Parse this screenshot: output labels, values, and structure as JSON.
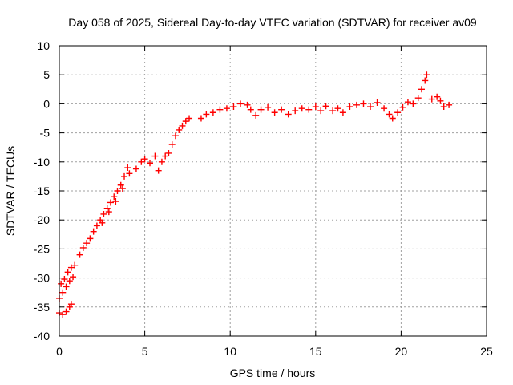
{
  "chart_data": {
    "type": "scatter",
    "title": "Day 058 of 2025, Sidereal Day-to-day VTEC variation (SDTVAR) for receiver av09",
    "xlabel": "GPS time / hours",
    "ylabel": "SDTVAR / TECUs",
    "xlim": [
      0,
      25
    ],
    "ylim": [
      -40,
      10
    ],
    "xticks": [
      0,
      5,
      10,
      15,
      20,
      25
    ],
    "yticks": [
      10,
      5,
      0,
      -5,
      -10,
      -15,
      -20,
      -25,
      -30,
      -35,
      -40
    ],
    "xtick_labels": [
      "0",
      "5",
      "10",
      "15",
      "20",
      "25"
    ],
    "ytick_labels": [
      "10",
      "5",
      "0",
      "-5",
      "-10",
      "-15",
      "-20",
      "-25",
      "-30",
      "-35",
      "-40"
    ],
    "grid": true,
    "marker": "+",
    "series": [
      {
        "name": "SDTVAR",
        "color": "#ff0000",
        "points": [
          [
            0.0,
            -36.0
          ],
          [
            0.2,
            -36.3
          ],
          [
            0.4,
            -35.8
          ],
          [
            0.6,
            -35.0
          ],
          [
            0.7,
            -34.5
          ],
          [
            0.0,
            -33.5
          ],
          [
            0.2,
            -32.5
          ],
          [
            0.4,
            -31.5
          ],
          [
            0.6,
            -30.5
          ],
          [
            0.8,
            -29.8
          ],
          [
            0.1,
            -31.0
          ],
          [
            0.3,
            -30.2
          ],
          [
            0.5,
            -29.0
          ],
          [
            0.7,
            -28.2
          ],
          [
            0.9,
            -27.8
          ],
          [
            1.2,
            -26.0
          ],
          [
            1.4,
            -24.8
          ],
          [
            1.6,
            -24.0
          ],
          [
            1.8,
            -23.2
          ],
          [
            2.0,
            -22.0
          ],
          [
            2.2,
            -21.0
          ],
          [
            2.4,
            -20.0
          ],
          [
            2.6,
            -19.0
          ],
          [
            2.8,
            -18.0
          ],
          [
            3.0,
            -17.0
          ],
          [
            3.2,
            -16.0
          ],
          [
            3.4,
            -15.0
          ],
          [
            3.6,
            -14.0
          ],
          [
            3.8,
            -12.5
          ],
          [
            4.0,
            -11.0
          ],
          [
            2.5,
            -20.5
          ],
          [
            2.9,
            -18.6
          ],
          [
            3.3,
            -16.8
          ],
          [
            3.7,
            -14.6
          ],
          [
            4.1,
            -12.0
          ],
          [
            4.5,
            -11.2
          ],
          [
            4.8,
            -10.0
          ],
          [
            5.0,
            -9.5
          ],
          [
            5.3,
            -10.2
          ],
          [
            5.6,
            -9.0
          ],
          [
            5.8,
            -11.5
          ],
          [
            6.0,
            -10.0
          ],
          [
            6.2,
            -9.0
          ],
          [
            6.4,
            -8.5
          ],
          [
            6.6,
            -7.0
          ],
          [
            6.8,
            -5.5
          ],
          [
            7.0,
            -4.5
          ],
          [
            7.2,
            -3.8
          ],
          [
            7.4,
            -3.0
          ],
          [
            7.6,
            -2.5
          ],
          [
            8.3,
            -2.5
          ],
          [
            8.6,
            -1.8
          ],
          [
            9.0,
            -1.5
          ],
          [
            9.4,
            -1.0
          ],
          [
            9.8,
            -0.8
          ],
          [
            10.2,
            -0.5
          ],
          [
            10.6,
            0.0
          ],
          [
            11.0,
            -0.2
          ],
          [
            11.2,
            -1.0
          ],
          [
            11.5,
            -2.0
          ],
          [
            11.8,
            -1.0
          ],
          [
            12.2,
            -0.6
          ],
          [
            12.6,
            -1.5
          ],
          [
            13.0,
            -1.0
          ],
          [
            13.4,
            -1.8
          ],
          [
            13.8,
            -1.2
          ],
          [
            14.2,
            -0.8
          ],
          [
            14.6,
            -1.0
          ],
          [
            15.0,
            -0.5
          ],
          [
            15.3,
            -1.2
          ],
          [
            15.6,
            -0.4
          ],
          [
            16.0,
            -1.2
          ],
          [
            16.3,
            -0.8
          ],
          [
            16.6,
            -1.5
          ],
          [
            17.0,
            -0.5
          ],
          [
            17.4,
            -0.2
          ],
          [
            17.8,
            0.0
          ],
          [
            18.2,
            -0.5
          ],
          [
            18.6,
            0.2
          ],
          [
            19.0,
            -0.8
          ],
          [
            19.3,
            -1.8
          ],
          [
            19.5,
            -2.5
          ],
          [
            19.8,
            -1.5
          ],
          [
            20.1,
            -0.6
          ],
          [
            20.4,
            0.3
          ],
          [
            20.7,
            0.0
          ],
          [
            21.0,
            1.0
          ],
          [
            21.2,
            2.5
          ],
          [
            21.4,
            4.0
          ],
          [
            21.5,
            5.0
          ],
          [
            21.8,
            0.8
          ],
          [
            22.1,
            1.2
          ],
          [
            22.3,
            0.5
          ],
          [
            22.5,
            -0.5
          ],
          [
            22.8,
            -0.2
          ]
        ]
      }
    ]
  }
}
